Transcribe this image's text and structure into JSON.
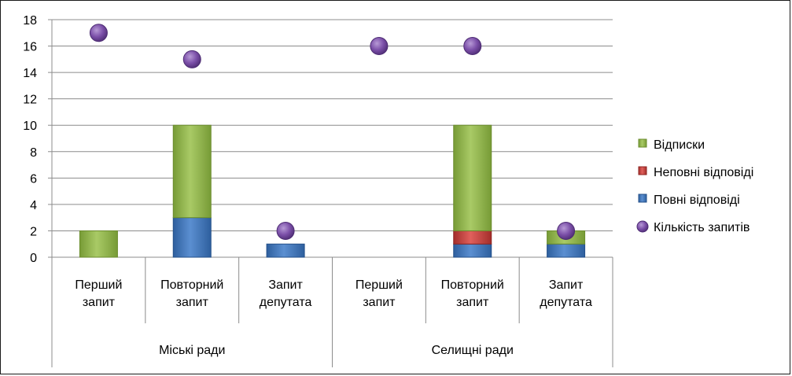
{
  "chart_data": {
    "type": "bar",
    "stacked": true,
    "groups": [
      {
        "label": "Міські ради",
        "categories": [
          [
            "Перший",
            "запит"
          ],
          [
            "Повторний",
            "запит"
          ],
          [
            "Запит",
            "депутата"
          ]
        ]
      },
      {
        "label": "Селищні ради",
        "categories": [
          [
            "Перший",
            "запит"
          ],
          [
            "Повторний",
            "запит"
          ],
          [
            "Запит",
            "депутата"
          ]
        ]
      }
    ],
    "series": [
      {
        "name": "Повні відповіді",
        "color": "#4f81bd",
        "values": [
          0,
          3,
          1,
          0,
          1,
          1
        ]
      },
      {
        "name": "Неповні відповіді",
        "color": "#c0504d",
        "values": [
          0,
          0,
          0,
          0,
          1,
          0
        ]
      },
      {
        "name": "Відписки",
        "color": "#9bbb59",
        "values": [
          2,
          7,
          0,
          0,
          8,
          1
        ]
      }
    ],
    "points_series": {
      "name": "Кількість запитів",
      "color": "#7b4fa8",
      "values": [
        17,
        15,
        2,
        16,
        16,
        2
      ]
    },
    "legend_order": [
      "Відписки",
      "Неповні відповіді",
      "Повні відповіді",
      "Кількість запитів"
    ],
    "ylim": [
      0,
      18
    ],
    "yticks": [
      0,
      2,
      4,
      6,
      8,
      10,
      12,
      14,
      16,
      18
    ],
    "grid": true,
    "legend_position": "right"
  }
}
